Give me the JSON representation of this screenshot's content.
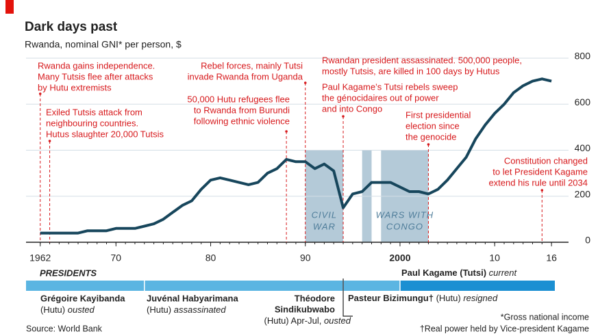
{
  "chart_data": {
    "type": "line",
    "title": "Dark days past",
    "subtitle": "Rwanda, nominal GNI* per person, $",
    "x": [
      1962,
      1963,
      1964,
      1965,
      1966,
      1967,
      1968,
      1969,
      1970,
      1971,
      1972,
      1973,
      1974,
      1975,
      1976,
      1977,
      1978,
      1979,
      1980,
      1981,
      1982,
      1983,
      1984,
      1985,
      1986,
      1987,
      1988,
      1989,
      1990,
      1991,
      1992,
      1993,
      1994,
      1995,
      1996,
      1997,
      1998,
      1999,
      2000,
      2001,
      2002,
      2003,
      2004,
      2005,
      2006,
      2007,
      2008,
      2009,
      2010,
      2011,
      2012,
      2013,
      2014,
      2015,
      2016
    ],
    "series": [
      {
        "name": "GNI per person",
        "color": "#17465c",
        "values": [
          40,
          40,
          40,
          40,
          40,
          50,
          50,
          50,
          60,
          60,
          60,
          70,
          80,
          100,
          130,
          160,
          180,
          230,
          270,
          280,
          270,
          260,
          250,
          260,
          300,
          320,
          360,
          350,
          350,
          320,
          340,
          310,
          150,
          210,
          220,
          260,
          260,
          260,
          240,
          220,
          220,
          210,
          230,
          270,
          320,
          370,
          450,
          510,
          560,
          600,
          650,
          680,
          700,
          710,
          700
        ]
      }
    ],
    "xlim": [
      1960.5,
      2017.8
    ],
    "xticks": [
      1962,
      {
        "value": 1970,
        "label": "70"
      },
      {
        "value": 1980,
        "label": "80"
      },
      {
        "value": 1990,
        "label": "90"
      },
      2000,
      {
        "value": 2010,
        "label": "10"
      },
      {
        "value": 2016,
        "label": "16"
      }
    ],
    "ylim": [
      0,
      800
    ],
    "yticks": [
      0,
      200,
      400,
      600,
      800
    ],
    "grid": true,
    "shaded": [
      {
        "start": 1990,
        "end": 1994,
        "label": [
          "CIVIL",
          "WAR"
        ]
      },
      {
        "start": 1996,
        "end": 1997
      },
      {
        "start": 1998,
        "end": 2003,
        "label": [
          "WARS WITH",
          "CONGO"
        ]
      }
    ],
    "annotations": [
      {
        "x": 1962,
        "lines": [
          "Rwanda gains independence.",
          "Many Tutsis flee after attacks",
          "by Hutu extremists"
        ]
      },
      {
        "x": 1963,
        "lines": [
          "Exiled Tutsis attack from",
          "neighbouring countries.",
          "Hutus slaughter 20,000 Tutsis"
        ]
      },
      {
        "x": 1990,
        "lines": [
          "Rebel forces, mainly Tutsi",
          "invade Rwanda from Uganda"
        ]
      },
      {
        "x": 1988,
        "lines": [
          "50,000 Hutu refugees flee",
          "to Rwanda from Burundi",
          "following ethnic violence"
        ]
      },
      {
        "x": 1994,
        "lines": [
          "Rwandan president assassinated. 500,000 people,",
          "mostly Tutsis, are killed in 100 days by Hutus",
          "Paul Kagame’s Tutsi rebels sweep",
          "the génocidaires out of power",
          "and into Congo"
        ]
      },
      {
        "x": 2003,
        "lines": [
          "First presidential",
          "election since",
          "the genocide"
        ]
      },
      {
        "x": 2015,
        "lines": [
          "Constitution changed",
          "to let President Kagame",
          "extend his rule until 2034"
        ]
      }
    ],
    "presidents_heading": "PRESIDENTS",
    "presidents": [
      {
        "name": "Grégoire Kayibanda",
        "party": "(Hutu)",
        "fate": "ousted",
        "start": 1962,
        "end": 1973
      },
      {
        "name": "Juvénal Habyarimana",
        "party": "(Hutu)",
        "fate": "assassinated",
        "start": 1973,
        "end": 1994
      },
      {
        "name": [
          "Théodore",
          "Sindikubwabo"
        ],
        "party": "(Hutu) Apr-Jul,",
        "fate": "ousted",
        "start": 1994,
        "end": 1994
      },
      {
        "name": "Pasteur Bizimungu†",
        "party": "(Hutu)",
        "fate": "resigned",
        "start": 1994,
        "end": 2000
      },
      {
        "name": "Paul Kagame",
        "party": "(Tutsi)",
        "fate": "current",
        "start": 2000
      }
    ],
    "footnotes": [
      "*Gross national income",
      "†Real power held by Vice-president Kagame"
    ],
    "source": "Source: World Bank"
  }
}
